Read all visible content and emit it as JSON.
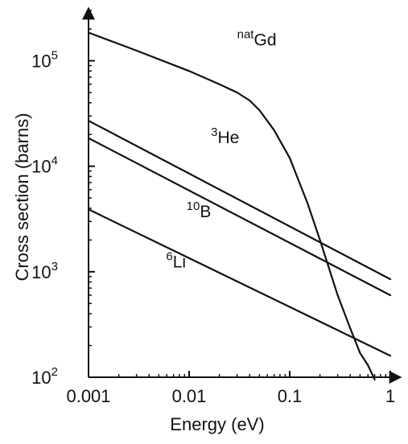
{
  "chart_data": {
    "type": "line",
    "title": "",
    "xlabel": "Energy (eV)",
    "ylabel": "Cross section (barns)",
    "x_scale": "log",
    "y_scale": "log",
    "xlim": [
      0.001,
      1
    ],
    "ylim": [
      100,
      300000
    ],
    "grid": false,
    "x_ticks": [
      {
        "value": 0.001,
        "label": "0.001"
      },
      {
        "value": 0.01,
        "label": "0.01"
      },
      {
        "value": 0.1,
        "label": "0.1"
      },
      {
        "value": 1,
        "label": "1"
      }
    ],
    "y_ticks": [
      {
        "value": 100,
        "base": "10",
        "exp": "2"
      },
      {
        "value": 1000,
        "base": "10",
        "exp": "3"
      },
      {
        "value": 10000,
        "base": "10",
        "exp": "4"
      },
      {
        "value": 100000,
        "base": "10",
        "exp": "5"
      }
    ],
    "series": [
      {
        "name": "natGd",
        "label_sup": "nat",
        "label_main": "Gd",
        "label_at": [
          0.03,
          140000
        ],
        "x": [
          0.001,
          0.003,
          0.01,
          0.02,
          0.03,
          0.04,
          0.05,
          0.07,
          0.1,
          0.15,
          0.2,
          0.3,
          0.4,
          0.5,
          0.6,
          0.7
        ],
        "y": [
          185000,
          125000,
          80000,
          60000,
          50000,
          42000,
          34000,
          22000,
          12000,
          4500,
          2000,
          600,
          290,
          170,
          130,
          95
        ]
      },
      {
        "name": "3He",
        "label_sup": "3",
        "label_main": "He",
        "label_at": [
          0.0165,
          16500
        ],
        "x": [
          0.001,
          1
        ],
        "y": [
          27000,
          850
        ]
      },
      {
        "name": "10B",
        "label_sup": "10",
        "label_main": "B",
        "label_at": [
          0.0094,
          3300
        ],
        "x": [
          0.001,
          1
        ],
        "y": [
          18500,
          600
        ]
      },
      {
        "name": "6Li",
        "label_sup": "6",
        "label_main": "Li",
        "label_at": [
          0.0059,
          1100
        ],
        "x": [
          0.001,
          1
        ],
        "y": [
          3900,
          160
        ]
      }
    ]
  }
}
